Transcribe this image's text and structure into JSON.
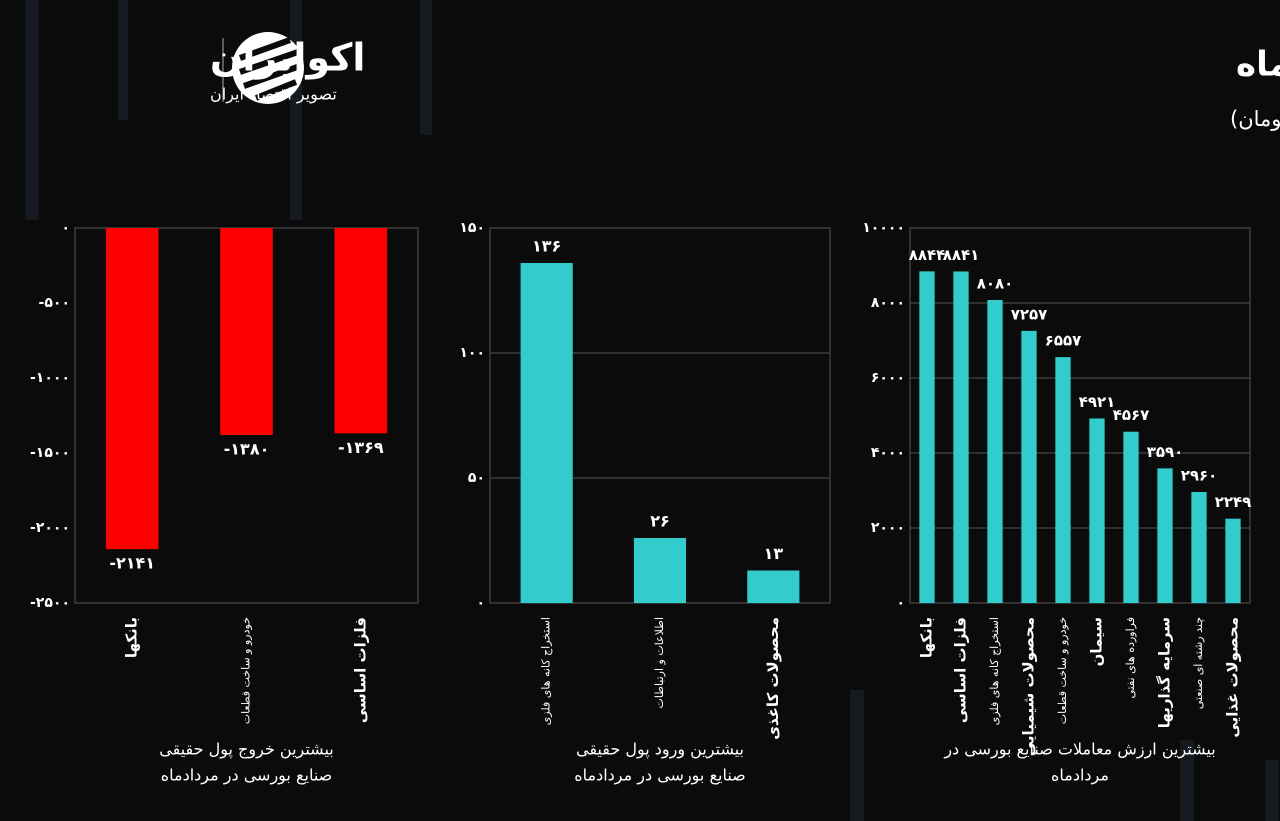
{
  "header": {
    "title": "بررسی صنایع بورسی در  مردادماه",
    "subtitle": "(واحد: میلیارد تومان)",
    "brand": "اکوایران",
    "tagline": "تصویر اقتصاد ایران"
  },
  "chart_data": [
    {
      "type": "bar",
      "caption": [
        "بیشترین خروج پول حقیقی",
        "صنایع بورسی در مردادماه"
      ],
      "categories": [
        "بانکها",
        "خودرو و ساخت قطعات",
        "فلزات اساسی"
      ],
      "values": [
        -2141,
        -1380,
        -1369
      ],
      "value_labels": [
        "-۲۱۴۱",
        "-۱۳۸۰",
        "-۱۳۶۹"
      ],
      "color": "#ff0000",
      "ylim": [
        -2500,
        0
      ],
      "yticks": [
        {
          "value": 0,
          "label": "۰"
        },
        {
          "value": -500,
          "label": "-۵۰۰"
        },
        {
          "value": -1000,
          "label": "-۱۰۰۰"
        },
        {
          "value": -1500,
          "label": "-۱۵۰۰"
        },
        {
          "value": -2000,
          "label": "-۲۰۰۰"
        },
        {
          "value": -2500,
          "label": "-۲۵۰۰"
        }
      ],
      "grid": false
    },
    {
      "type": "bar",
      "caption": [
        "بیشترین ورود پول حقیقی",
        "صنایع بورسی در مردادماه"
      ],
      "categories": [
        "استخراج کانه های فلزی",
        "اطلاعات و ارتباطات",
        "محصولات کاغذی"
      ],
      "values": [
        136,
        26,
        13
      ],
      "value_labels": [
        "۱۳۶",
        "۲۶",
        "۱۳"
      ],
      "color": "#33cccc",
      "ylim": [
        0,
        150
      ],
      "yticks": [
        {
          "value": 0,
          "label": "۰"
        },
        {
          "value": 50,
          "label": "۵۰"
        },
        {
          "value": 100,
          "label": "۱۰۰"
        },
        {
          "value": 150,
          "label": "۱۵۰"
        }
      ],
      "grid": true
    },
    {
      "type": "bar",
      "caption": [
        "بیشترین ارزش معاملات صنایع بورسی در",
        "مردادماه"
      ],
      "categories": [
        "بانکها",
        "فلزات اساسی",
        "استخراج کانه های فلزی",
        "محصولات شیمیایی",
        "خودرو و ساخت قطعات",
        "سیمان",
        "فراورده های نفتی",
        "سرمایه گذاریها",
        "چند رشته ای صنعتی",
        "محصولات غذایی"
      ],
      "values": [
        8844,
        8841,
        8080,
        7257,
        6557,
        4921,
        4567,
        3590,
        2960,
        2249
      ],
      "value_labels": [
        "۸۸۴۴",
        "۸۸۴۱",
        "۸۰۸۰",
        "۷۲۵۷",
        "۶۵۵۷",
        "۴۹۲۱",
        "۴۵۶۷",
        "۳۵۹۰",
        "۲۹۶۰",
        "۲۲۴۹"
      ],
      "color": "#33cccc",
      "ylim": [
        0,
        10000
      ],
      "yticks": [
        {
          "value": 0,
          "label": "۰"
        },
        {
          "value": 2000,
          "label": "۲۰۰۰"
        },
        {
          "value": 4000,
          "label": "۴۰۰۰"
        },
        {
          "value": 6000,
          "label": "۶۰۰۰"
        },
        {
          "value": 8000,
          "label": "۸۰۰۰"
        },
        {
          "value": 10000,
          "label": "۱۰۰۰۰"
        }
      ],
      "grid": true
    }
  ]
}
